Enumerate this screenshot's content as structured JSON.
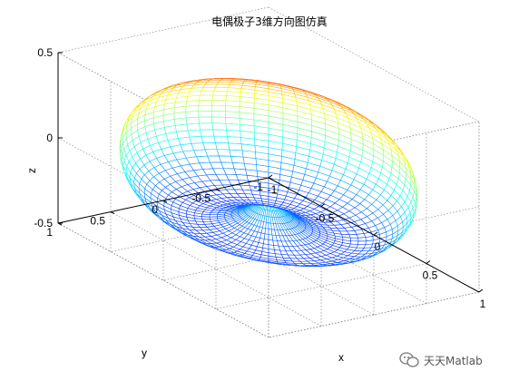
{
  "chart_data": {
    "type": "surface",
    "title": "电偶极子3维方向图仿真",
    "xlabel": "x",
    "ylabel": "y",
    "zlabel": "z",
    "xlim": [
      -1,
      1
    ],
    "ylim": [
      -1,
      1
    ],
    "zlim": [
      -0.5,
      0.5
    ],
    "x_ticks": [
      "-1",
      "-0.5",
      "0",
      "0.5",
      "1"
    ],
    "y_ticks": [
      "-1",
      "-0.5",
      "0",
      "0.5",
      "1"
    ],
    "z_ticks": [
      "-0.5",
      "0",
      "0.5"
    ],
    "surface": {
      "function": "r = sin(theta)",
      "shape": "torus",
      "max_radius": 1,
      "max_height": 0.5,
      "colormap": "jet",
      "color_by": "z",
      "grid": true
    }
  },
  "watermark": {
    "text": "天天Matlab",
    "icon": "wechat-icon"
  }
}
